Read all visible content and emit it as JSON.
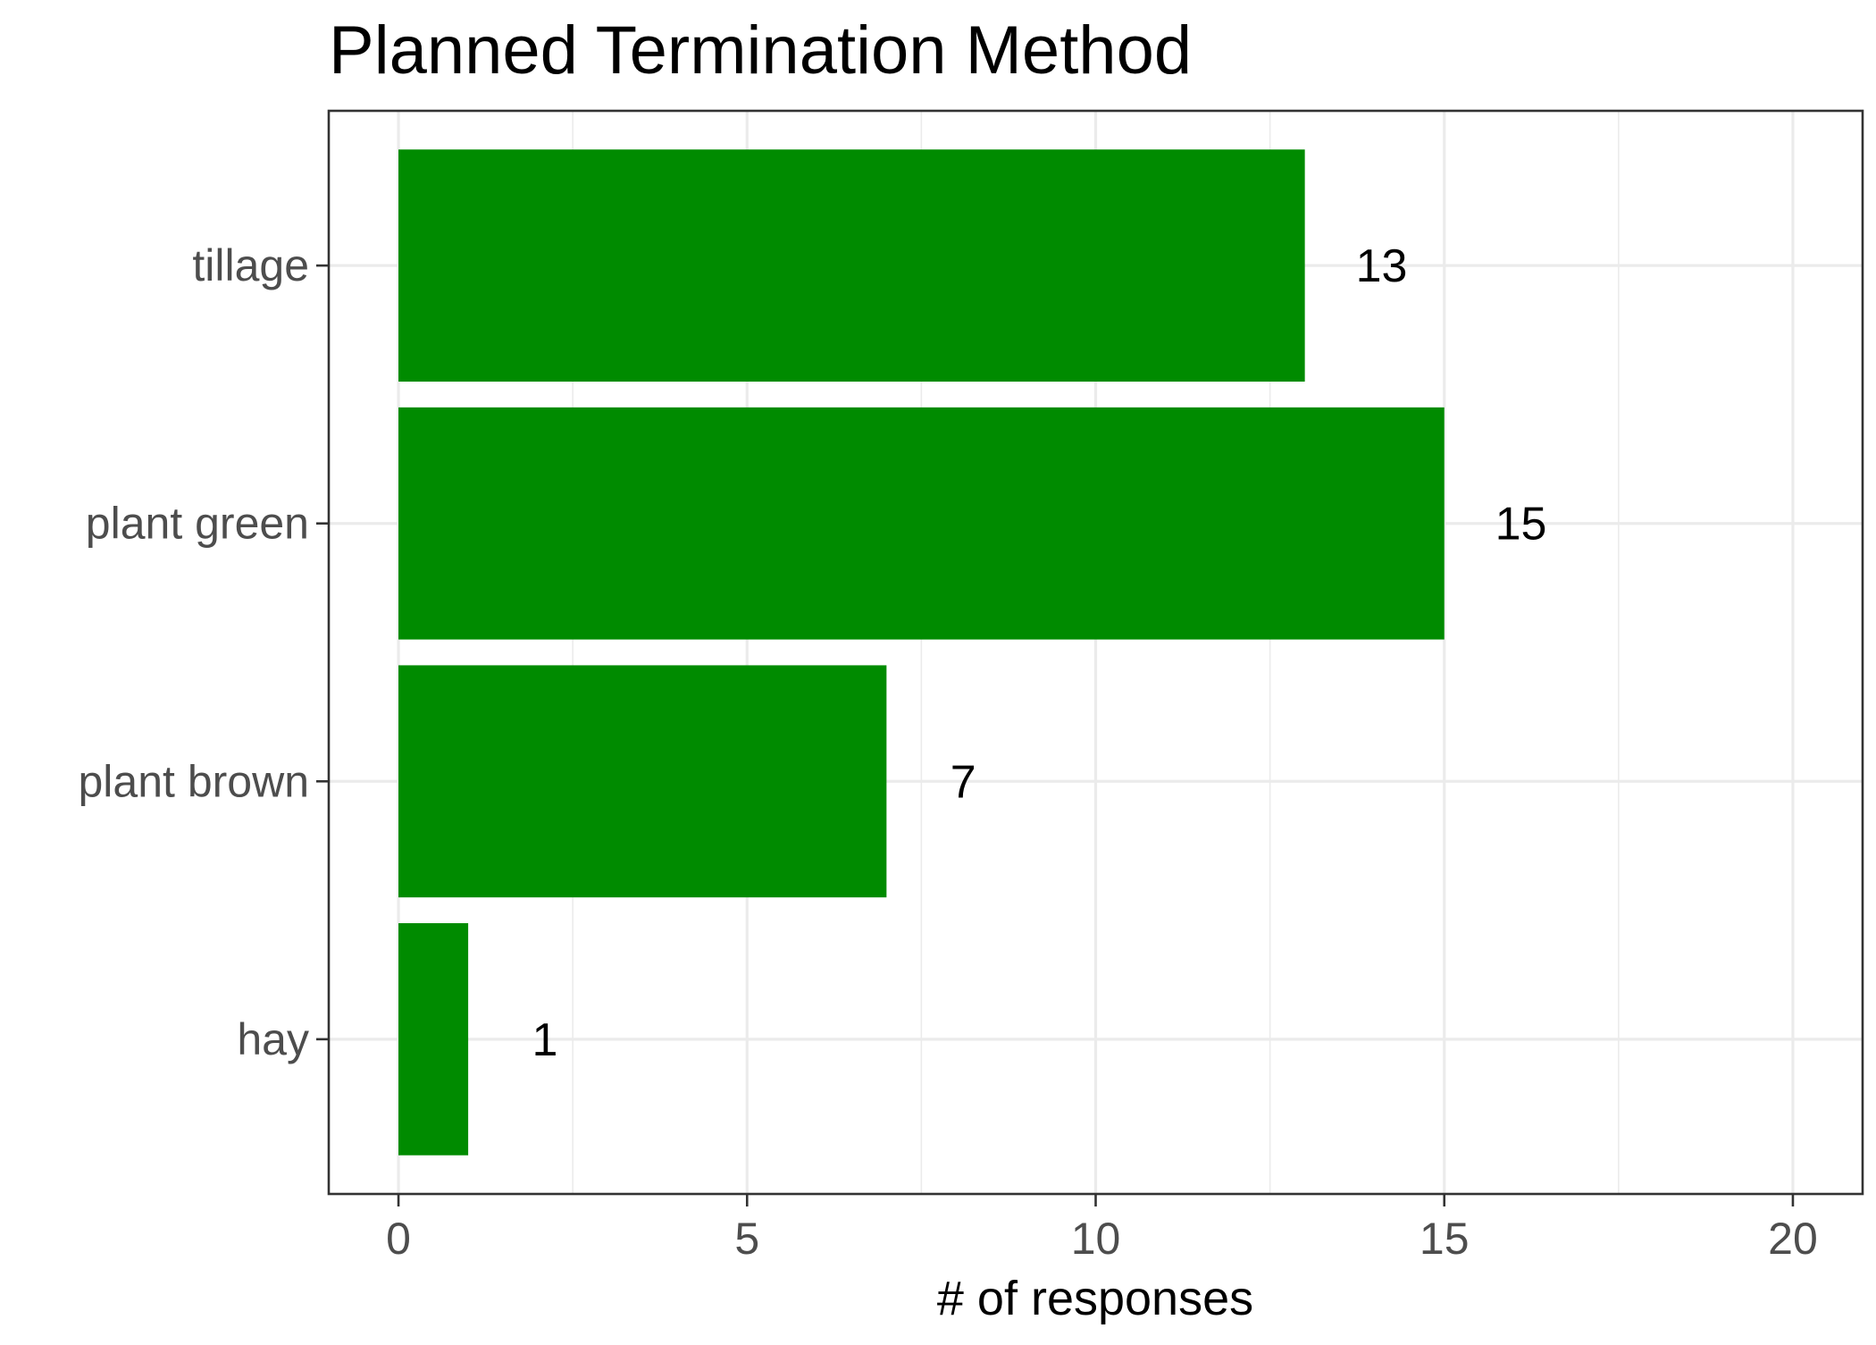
{
  "chart_data": {
    "type": "bar",
    "orientation": "horizontal",
    "title": "Planned Termination Method",
    "xlabel": "# of responses",
    "ylabel": "",
    "categories": [
      "tillage",
      "plant green",
      "plant brown",
      "hay"
    ],
    "values": [
      13,
      15,
      7,
      1
    ],
    "data_labels": [
      "13",
      "15",
      "7",
      "1"
    ],
    "xlim": [
      -1,
      21
    ],
    "x_ticks": [
      0,
      5,
      10,
      15,
      20
    ],
    "x_tick_labels": [
      "0",
      "5",
      "10",
      "15",
      "20"
    ],
    "x_minor_ticks": [
      2.5,
      7.5,
      12.5,
      17.5
    ],
    "grid": true,
    "legend": "none",
    "bar_color": "#008b00"
  }
}
